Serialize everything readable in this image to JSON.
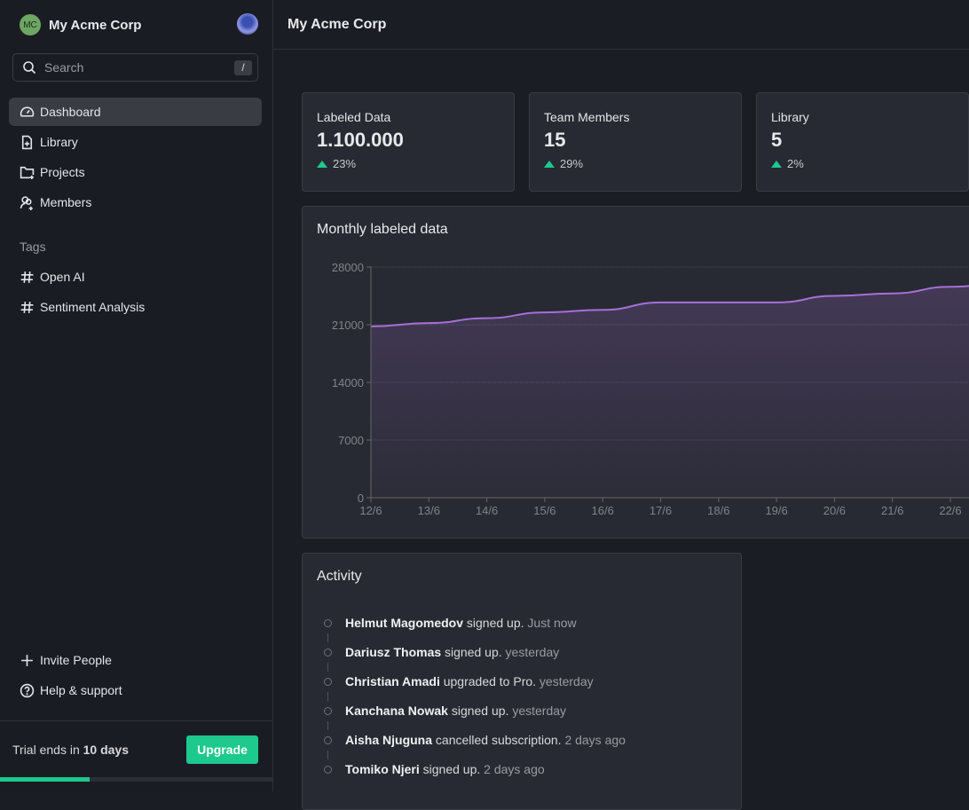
{
  "sidebar": {
    "org_initials": "MC",
    "org_name": "My Acme Corp",
    "search_placeholder": "Search",
    "search_shortcut": "/",
    "nav": [
      {
        "label": "Dashboard",
        "icon": "gauge-icon",
        "active": true
      },
      {
        "label": "Library",
        "icon": "file-plus-icon"
      },
      {
        "label": "Projects",
        "icon": "folder-plus-icon"
      },
      {
        "label": "Members",
        "icon": "users-plus-icon"
      }
    ],
    "tags_heading": "Tags",
    "tags": [
      {
        "label": "Open AI"
      },
      {
        "label": "Sentiment Analysis"
      }
    ],
    "invite": "Invite People",
    "help": "Help & support",
    "trial_prefix": "Trial ends in ",
    "trial_days": "10 days",
    "upgrade": "Upgrade",
    "trial_progress_percent": 33
  },
  "header": {
    "title": "My Acme Corp"
  },
  "stats": [
    {
      "label": "Labeled Data",
      "value": "1.100.000",
      "change": "23%"
    },
    {
      "label": "Team Members",
      "value": "15",
      "change": "29%"
    },
    {
      "label": "Library",
      "value": "5",
      "change": "2%"
    }
  ],
  "chart_title": "Monthly labeled data",
  "chart_data": {
    "type": "area",
    "x": [
      "12/6",
      "13/6",
      "14/6",
      "15/6",
      "16/6",
      "17/6",
      "18/6",
      "19/6",
      "20/6",
      "21/6",
      "22/6"
    ],
    "values": [
      20800,
      21200,
      21800,
      22500,
      22800,
      23700,
      23700,
      23700,
      24500,
      24800,
      25600
    ],
    "ylim": [
      0,
      28000
    ],
    "yticks": [
      0,
      7000,
      14000,
      21000,
      28000
    ],
    "grid": true,
    "color": "#a86fd6"
  },
  "activity": {
    "title": "Activity",
    "items": [
      {
        "name": "Helmut Magomedov",
        "action": "signed up.",
        "time": "Just now"
      },
      {
        "name": "Dariusz Thomas",
        "action": "signed up.",
        "time": "yesterday"
      },
      {
        "name": "Christian Amadi",
        "action": "upgraded to Pro.",
        "time": "yesterday"
      },
      {
        "name": "Kanchana Nowak",
        "action": "signed up.",
        "time": "yesterday"
      },
      {
        "name": "Aisha Njuguna",
        "action": "cancelled subscription.",
        "time": "2 days ago"
      },
      {
        "name": "Tomiko Njeri",
        "action": "signed up.",
        "time": "2 days ago"
      }
    ]
  }
}
